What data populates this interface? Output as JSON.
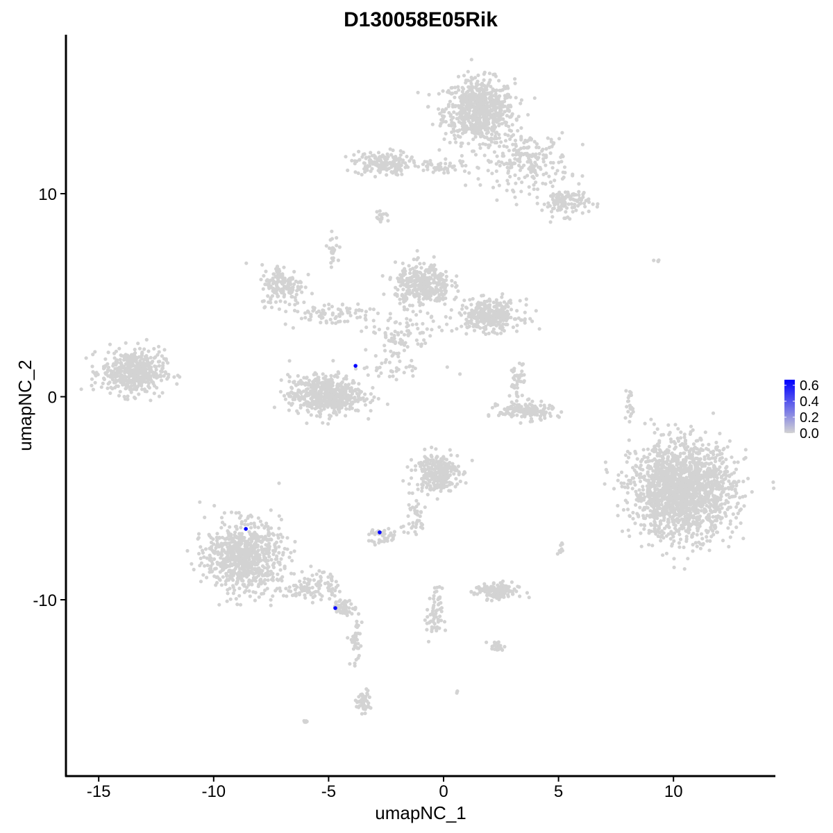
{
  "chart_data": {
    "type": "scatter",
    "title": "D130058E05Rik",
    "xlabel": "umapNC_1",
    "ylabel": "umapNC_2",
    "xlim": [
      -16.4,
      14.4
    ],
    "ylim": [
      -18.7,
      17.8
    ],
    "x_ticks": [
      -15,
      -10,
      -5,
      0,
      5,
      10
    ],
    "x_tick_labels": [
      "-15",
      "-10",
      "-5",
      "0",
      "5",
      "10"
    ],
    "y_ticks": [
      -10,
      0,
      10
    ],
    "y_tick_labels": [
      "-10",
      "0",
      "10"
    ],
    "grid": false,
    "point_color_low": "#D3D3D3",
    "point_color_high": "#0000FF",
    "legend": {
      "placement": "right",
      "range": [
        0,
        0.67
      ],
      "ticks": [
        0.0,
        0.2,
        0.4,
        0.6
      ],
      "tick_labels": [
        "0.0",
        "0.2",
        "0.4",
        "0.6"
      ]
    },
    "background_clusters": [
      {
        "x": 1.55,
        "y": 14.1,
        "sx": 0.9,
        "sy": 0.9,
        "n": 700,
        "value": 0
      },
      {
        "x": -2.7,
        "y": 11.5,
        "sx": 0.7,
        "sy": 0.35,
        "n": 160,
        "value": 0
      },
      {
        "x": 0.0,
        "y": 11.3,
        "sx": 1.0,
        "sy": 0.2,
        "n": 50,
        "value": 0
      },
      {
        "x": 3.6,
        "y": 11.6,
        "sx": 1.1,
        "sy": 0.8,
        "n": 220,
        "value": 0
      },
      {
        "x": 5.3,
        "y": 9.6,
        "sx": 0.6,
        "sy": 0.4,
        "n": 120,
        "value": 0
      },
      {
        "x": -2.7,
        "y": 8.8,
        "sx": 0.2,
        "sy": 0.15,
        "n": 15,
        "value": 0
      },
      {
        "x": -13.5,
        "y": 1.2,
        "sx": 0.8,
        "sy": 0.65,
        "n": 450,
        "value": 0
      },
      {
        "x": -7.0,
        "y": 5.5,
        "sx": 0.55,
        "sy": 0.6,
        "n": 150,
        "value": 0
      },
      {
        "x": -4.8,
        "y": 7.3,
        "sx": 0.15,
        "sy": 0.4,
        "n": 25,
        "value": 0
      },
      {
        "x": -5.0,
        "y": 4.1,
        "sx": 1.2,
        "sy": 0.35,
        "n": 80,
        "value": 0
      },
      {
        "x": -5.1,
        "y": 0.1,
        "sx": 0.95,
        "sy": 0.55,
        "n": 550,
        "value": 0
      },
      {
        "x": -0.9,
        "y": 5.5,
        "sx": 0.7,
        "sy": 0.6,
        "n": 350,
        "value": 0
      },
      {
        "x": 2.0,
        "y": 4.0,
        "sx": 0.8,
        "sy": 0.45,
        "n": 320,
        "value": 0
      },
      {
        "x": -1.8,
        "y": 3.0,
        "sx": 0.9,
        "sy": 0.6,
        "n": 80,
        "value": 0
      },
      {
        "x": -2.2,
        "y": 1.5,
        "sx": 0.8,
        "sy": 0.5,
        "n": 40,
        "value": 0
      },
      {
        "x": 3.6,
        "y": -0.7,
        "sx": 0.7,
        "sy": 0.25,
        "n": 170,
        "value": 0
      },
      {
        "x": 3.2,
        "y": 0.8,
        "sx": 0.2,
        "sy": 0.5,
        "n": 40,
        "value": 0
      },
      {
        "x": 10.4,
        "y": -4.6,
        "sx": 1.3,
        "sy": 1.35,
        "n": 1700,
        "value": 0
      },
      {
        "x": 8.1,
        "y": -0.5,
        "sx": 0.15,
        "sy": 0.6,
        "n": 20,
        "value": 0
      },
      {
        "x": -0.3,
        "y": -3.7,
        "sx": 0.55,
        "sy": 0.55,
        "n": 280,
        "value": 0
      },
      {
        "x": -1.3,
        "y": -5.9,
        "sx": 0.35,
        "sy": 0.6,
        "n": 40,
        "value": 0
      },
      {
        "x": -8.7,
        "y": -7.9,
        "sx": 0.95,
        "sy": 1.0,
        "n": 750,
        "value": 0
      },
      {
        "x": -5.7,
        "y": -9.3,
        "sx": 0.7,
        "sy": 0.45,
        "n": 110,
        "value": 0
      },
      {
        "x": -4.3,
        "y": -10.4,
        "sx": 0.3,
        "sy": 0.2,
        "n": 60,
        "value": 0
      },
      {
        "x": -3.8,
        "y": -12.0,
        "sx": 0.15,
        "sy": 0.8,
        "n": 40,
        "value": 0
      },
      {
        "x": -3.5,
        "y": -15.0,
        "sx": 0.2,
        "sy": 0.3,
        "n": 50,
        "value": 0
      },
      {
        "x": -2.6,
        "y": -6.9,
        "sx": 0.35,
        "sy": 0.25,
        "n": 40,
        "value": 0
      },
      {
        "x": 2.3,
        "y": -9.6,
        "sx": 0.55,
        "sy": 0.25,
        "n": 130,
        "value": 0
      },
      {
        "x": -0.4,
        "y": -10.8,
        "sx": 0.2,
        "sy": 0.8,
        "n": 60,
        "value": 0
      },
      {
        "x": 2.3,
        "y": -12.3,
        "sx": 0.2,
        "sy": 0.15,
        "n": 25,
        "value": 0
      },
      {
        "x": 5.1,
        "y": -7.5,
        "sx": 0.1,
        "sy": 0.2,
        "n": 8,
        "value": 0
      },
      {
        "x": 9.3,
        "y": 6.7,
        "sx": 0.1,
        "sy": 0.05,
        "n": 4,
        "value": 0
      },
      {
        "x": -6.0,
        "y": -16.0,
        "sx": 0.1,
        "sy": 0.05,
        "n": 5,
        "value": 0
      },
      {
        "x": 0.6,
        "y": -14.5,
        "sx": 0.05,
        "sy": 0.05,
        "n": 3,
        "value": 0
      }
    ],
    "expressing_cells": [
      {
        "x": -3.83,
        "y": 1.52,
        "value": 0.67
      },
      {
        "x": -8.6,
        "y": -6.51,
        "value": 0.67
      },
      {
        "x": -2.78,
        "y": -6.68,
        "value": 0.67
      },
      {
        "x": -4.71,
        "y": -10.41,
        "value": 0.67
      }
    ]
  }
}
